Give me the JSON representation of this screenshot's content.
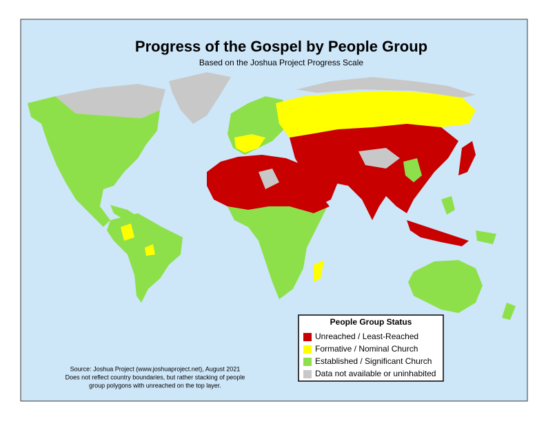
{
  "title": "Progress of the Gospel by People Group",
  "subtitle": "Based on the Joshua Project Progress Scale",
  "legend": {
    "title": "People Group Status",
    "items": [
      {
        "label": "Unreached / Least-Reached",
        "color": "#c80000"
      },
      {
        "label": "Formative / Nominal Church",
        "color": "#ffff00"
      },
      {
        "label": "Established / Significant Church",
        "color": "#8ee04a"
      },
      {
        "label": "Data not available or uninhabited",
        "color": "#c8c8c8"
      }
    ]
  },
  "source": [
    "Source: Joshua Project (www.joshuaproject.net), August 2021",
    "Does not reflect country boundaries, but rather stacking of people",
    "group polygons with unreached on the top layer."
  ]
}
